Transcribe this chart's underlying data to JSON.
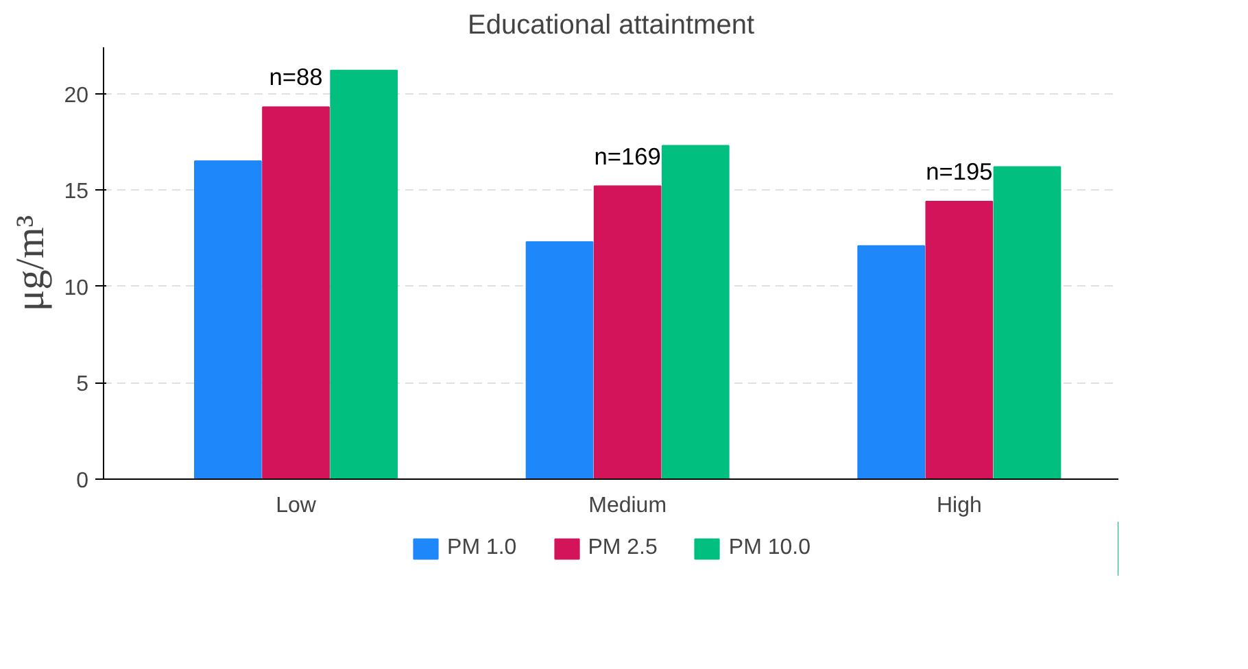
{
  "chart_data": {
    "type": "bar",
    "title": "Educational attaintment",
    "ylabel": "μg/m³",
    "categories": [
      "Low",
      "Medium",
      "High"
    ],
    "series": [
      {
        "name": "PM 1.0",
        "color": "#1e87fa",
        "values": [
          16.5,
          12.3,
          12.1
        ]
      },
      {
        "name": "PM 2.5",
        "color": "#d4145a",
        "values": [
          19.3,
          15.2,
          14.4
        ]
      },
      {
        "name": "PM 10.0",
        "color": "#00bf7f",
        "values": [
          21.2,
          17.3,
          16.2
        ]
      }
    ],
    "annotations": [
      "n=88",
      "n=169",
      "n=195"
    ],
    "ylim": [
      0,
      22.4
    ],
    "yticks": [
      0,
      5,
      10,
      15,
      20
    ],
    "grid": "y",
    "legend": "bottom"
  }
}
